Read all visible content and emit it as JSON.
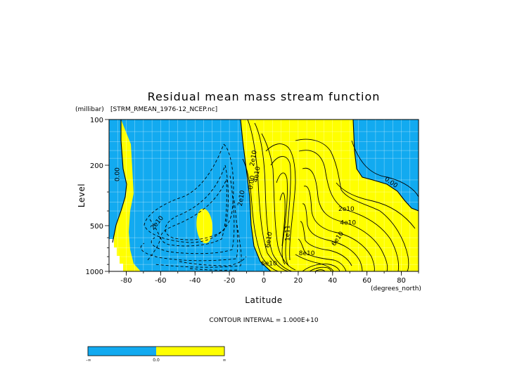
{
  "chart_data": {
    "type": "contour",
    "title": "Residual mean mass stream function",
    "dataset": "[STRM_RMEAN_1976-12_NCEP.nc]",
    "xlabel": "Latitude",
    "x_units": "(degrees_north)",
    "ylabel": "Level",
    "y_units": "(millibar)",
    "xlim": [
      -90,
      90
    ],
    "ylim": [
      1000,
      100
    ],
    "y_scale": "log",
    "x_ticks": [
      -80,
      -60,
      -40,
      -20,
      0,
      20,
      40,
      60,
      80
    ],
    "y_ticks": [
      100,
      200,
      500,
      1000
    ],
    "contour_interval_text": "CONTOUR INTERVAL = 1.000E+10",
    "contour_interval": 10000000000.0,
    "colorbar": {
      "labels": [
        "-∞",
        "0.0",
        "∞"
      ],
      "colors": [
        "#12aaf0",
        "#ffff00"
      ]
    },
    "fill_colors": {
      "negative": "#12aaf0",
      "positive": "#ffff00",
      "no_data": "#ffffff"
    },
    "contour_labels": [
      {
        "text": "0.00",
        "lat": -85,
        "lev": 230,
        "rotate": -90
      },
      {
        "text": "2e10",
        "lat": -62,
        "lev": 480,
        "rotate": -50
      },
      {
        "text": "2e10",
        "lat": -13,
        "lev": 330,
        "rotate": -80
      },
      {
        "text": "0.00",
        "lat": -7,
        "lev": 260,
        "rotate": -80
      },
      {
        "text": "2e10",
        "lat": -6,
        "lev": 180,
        "rotate": -80
      },
      {
        "text": "4e10",
        "lat": -4,
        "lev": 230,
        "rotate": -80
      },
      {
        "text": "6e10",
        "lat": 3,
        "lev": 620,
        "rotate": -80
      },
      {
        "text": "1e11",
        "lat": 14,
        "lev": 560,
        "rotate": -90
      },
      {
        "text": "8e10",
        "lat": 25,
        "lev": 760,
        "rotate": 0
      },
      {
        "text": "6e10",
        "lat": 43,
        "lev": 610,
        "rotate": -55
      },
      {
        "text": "4e10",
        "lat": 49,
        "lev": 480,
        "rotate": 0
      },
      {
        "text": "2e10",
        "lat": 48,
        "lev": 390,
        "rotate": 0
      },
      {
        "text": "0.00",
        "lat": 74,
        "lev": 260,
        "rotate": 35
      },
      {
        "text": "6e10",
        "lat": 3,
        "lev": 890,
        "rotate": 0
      }
    ]
  }
}
